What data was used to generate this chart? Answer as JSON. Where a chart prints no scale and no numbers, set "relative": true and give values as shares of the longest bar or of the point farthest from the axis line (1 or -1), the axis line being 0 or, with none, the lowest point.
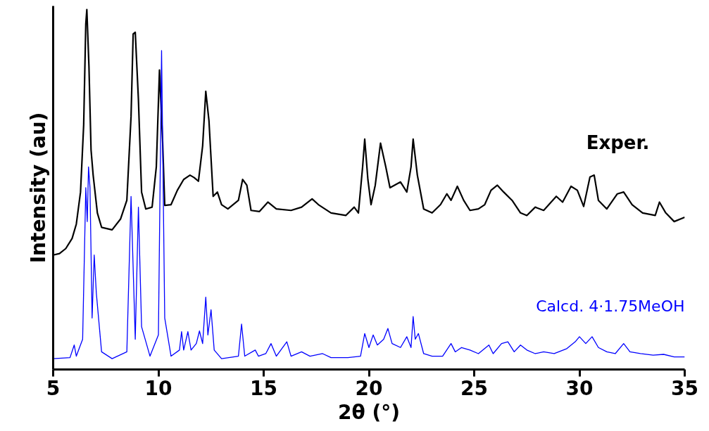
{
  "chart_data": {
    "type": "line",
    "relative": true,
    "xlabel": "2θ (°)",
    "ylabel": "Intensity (au)",
    "xlim": [
      5,
      35
    ],
    "xticks": [
      5,
      10,
      15,
      20,
      25,
      30,
      35
    ],
    "grid": false,
    "marker": "none",
    "line_style": "solid",
    "series": [
      {
        "name": "Exper.",
        "color": "#000000",
        "x": [
          5.0,
          5.3,
          5.6,
          5.9,
          6.1,
          6.3,
          6.45,
          6.55,
          6.6,
          6.7,
          6.8,
          6.9,
          7.1,
          7.3,
          7.8,
          8.2,
          8.5,
          8.7,
          8.8,
          8.9,
          9.05,
          9.2,
          9.4,
          9.7,
          9.9,
          10.05,
          10.2,
          10.3,
          10.6,
          10.9,
          11.2,
          11.5,
          11.7,
          11.9,
          12.1,
          12.25,
          12.4,
          12.6,
          12.8,
          13.0,
          13.3,
          13.8,
          14.0,
          14.2,
          14.4,
          14.8,
          15.2,
          15.6,
          16.3,
          16.8,
          17.3,
          17.6,
          18.2,
          18.9,
          19.3,
          19.5,
          19.7,
          19.8,
          19.95,
          20.1,
          20.3,
          20.55,
          20.8,
          21.0,
          21.5,
          21.8,
          22.0,
          22.1,
          22.3,
          22.6,
          23.0,
          23.4,
          23.7,
          23.9,
          24.2,
          24.5,
          24.8,
          25.2,
          25.5,
          25.8,
          26.1,
          26.4,
          26.8,
          27.2,
          27.5,
          27.9,
          28.3,
          28.9,
          29.2,
          29.6,
          29.9,
          30.2,
          30.5,
          30.7,
          30.9,
          31.3,
          31.8,
          32.1,
          32.5,
          33.0,
          33.6,
          33.8,
          34.1,
          34.5,
          35.0
        ],
        "values": [
          0.318,
          0.322,
          0.336,
          0.364,
          0.404,
          0.493,
          0.68,
          0.96,
          1.0,
          0.843,
          0.61,
          0.54,
          0.435,
          0.395,
          0.388,
          0.418,
          0.47,
          0.703,
          0.932,
          0.937,
          0.75,
          0.493,
          0.446,
          0.451,
          0.563,
          0.832,
          0.633,
          0.456,
          0.458,
          0.498,
          0.528,
          0.54,
          0.533,
          0.523,
          0.621,
          0.773,
          0.692,
          0.481,
          0.493,
          0.458,
          0.446,
          0.47,
          0.528,
          0.512,
          0.442,
          0.439,
          0.465,
          0.446,
          0.442,
          0.451,
          0.474,
          0.458,
          0.435,
          0.428,
          0.451,
          0.435,
          0.563,
          0.64,
          0.528,
          0.458,
          0.512,
          0.629,
          0.563,
          0.505,
          0.521,
          0.493,
          0.563,
          0.64,
          0.54,
          0.446,
          0.435,
          0.458,
          0.488,
          0.47,
          0.509,
          0.47,
          0.442,
          0.446,
          0.458,
          0.498,
          0.512,
          0.493,
          0.47,
          0.435,
          0.428,
          0.451,
          0.442,
          0.481,
          0.465,
          0.509,
          0.498,
          0.453,
          0.535,
          0.54,
          0.47,
          0.446,
          0.488,
          0.493,
          0.458,
          0.435,
          0.428,
          0.465,
          0.435,
          0.411,
          0.423
        ]
      },
      {
        "name": "Calcd. 4·1.75MeOH",
        "color": "#0000ff",
        "x": [
          5.0,
          5.8,
          6.0,
          6.1,
          6.4,
          6.55,
          6.62,
          6.68,
          6.75,
          6.85,
          6.95,
          7.05,
          7.3,
          7.8,
          8.5,
          8.7,
          8.9,
          9.05,
          9.2,
          9.6,
          10.0,
          10.15,
          10.3,
          10.6,
          11.0,
          11.1,
          11.2,
          11.4,
          11.55,
          11.8,
          11.95,
          12.1,
          12.25,
          12.35,
          12.5,
          12.65,
          13.0,
          13.8,
          13.95,
          14.1,
          14.6,
          14.75,
          15.1,
          15.35,
          15.6,
          16.1,
          16.3,
          16.8,
          17.2,
          17.8,
          18.2,
          19.0,
          19.6,
          19.8,
          20.0,
          20.2,
          20.4,
          20.7,
          20.9,
          21.1,
          21.5,
          21.8,
          22.0,
          22.1,
          22.2,
          22.35,
          22.6,
          23.0,
          23.5,
          23.9,
          24.1,
          24.4,
          24.8,
          25.2,
          25.7,
          25.9,
          26.3,
          26.6,
          26.9,
          27.2,
          27.5,
          27.9,
          28.3,
          28.8,
          29.4,
          29.8,
          30.0,
          30.3,
          30.6,
          30.9,
          31.3,
          31.7,
          32.1,
          32.4,
          32.9,
          33.5,
          34.0,
          34.5,
          35.0
        ],
        "values": [
          0.03,
          0.033,
          0.068,
          0.037,
          0.084,
          0.505,
          0.411,
          0.563,
          0.505,
          0.143,
          0.318,
          0.213,
          0.049,
          0.03,
          0.049,
          0.481,
          0.084,
          0.451,
          0.119,
          0.037,
          0.096,
          0.886,
          0.143,
          0.037,
          0.054,
          0.105,
          0.054,
          0.105,
          0.054,
          0.072,
          0.107,
          0.072,
          0.201,
          0.096,
          0.166,
          0.054,
          0.03,
          0.037,
          0.126,
          0.037,
          0.054,
          0.037,
          0.044,
          0.072,
          0.037,
          0.077,
          0.037,
          0.049,
          0.037,
          0.044,
          0.033,
          0.033,
          0.037,
          0.1,
          0.061,
          0.096,
          0.068,
          0.084,
          0.114,
          0.072,
          0.061,
          0.091,
          0.061,
          0.147,
          0.084,
          0.1,
          0.044,
          0.037,
          0.037,
          0.072,
          0.049,
          0.061,
          0.054,
          0.044,
          0.068,
          0.044,
          0.072,
          0.077,
          0.049,
          0.068,
          0.054,
          0.044,
          0.049,
          0.044,
          0.058,
          0.077,
          0.091,
          0.072,
          0.091,
          0.061,
          0.049,
          0.044,
          0.072,
          0.049,
          0.044,
          0.04,
          0.042,
          0.035,
          0.035
        ]
      }
    ]
  }
}
